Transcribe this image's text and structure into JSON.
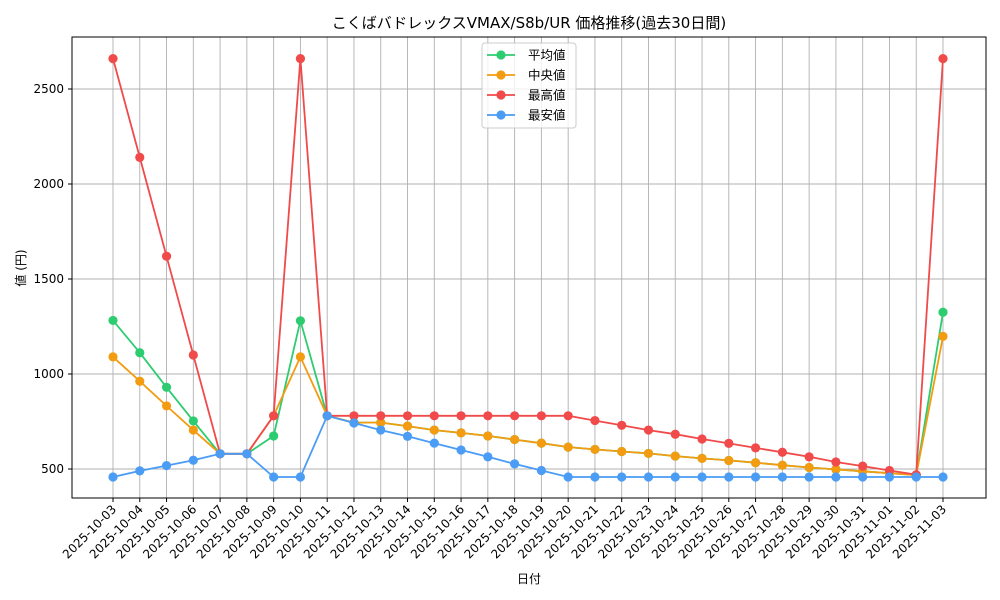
{
  "chart_data": {
    "type": "line",
    "title": "こくばバドレックスVMAX/S8b/UR 価格推移(過去30日間)",
    "xlabel": "日付",
    "ylabel": "値 (円)",
    "ylim": [
      350,
      2760
    ],
    "yticks": [
      500,
      1000,
      1500,
      2000,
      2500
    ],
    "grid": true,
    "legend_position": "upper center",
    "categories": [
      "2025-10-03",
      "2025-10-04",
      "2025-10-05",
      "2025-10-06",
      "2025-10-07",
      "2025-10-08",
      "2025-10-09",
      "2025-10-10",
      "2025-10-11",
      "2025-10-12",
      "2025-10-13",
      "2025-10-14",
      "2025-10-15",
      "2025-10-16",
      "2025-10-17",
      "2025-10-18",
      "2025-10-19",
      "2025-10-20",
      "2025-10-21",
      "2025-10-22",
      "2025-10-23",
      "2025-10-24",
      "2025-10-25",
      "2025-10-26",
      "2025-10-27",
      "2025-10-28",
      "2025-10-29",
      "2025-10-30",
      "2025-10-31",
      "2025-11-01",
      "2025-11-02",
      "2025-11-03"
    ],
    "series": [
      {
        "name": "平均値",
        "color": "#2ecc71",
        "values": [
          1282,
          1112,
          930,
          753,
          580,
          580,
          674,
          1280,
          780,
          744,
          744,
          726,
          705,
          690,
          674,
          655,
          636,
          615,
          603,
          592,
          582,
          568,
          556,
          545,
          533,
          520,
          508,
          498,
          488,
          478,
          468,
          1325
        ]
      },
      {
        "name": "中央値",
        "color": "#f39c12",
        "values": [
          1090,
          962,
          832,
          705,
          580,
          580,
          780,
          1090,
          780,
          744,
          744,
          726,
          705,
          690,
          674,
          655,
          636,
          615,
          603,
          592,
          582,
          568,
          556,
          545,
          533,
          520,
          508,
          498,
          488,
          478,
          468,
          1198
        ]
      },
      {
        "name": "最高値",
        "color": "#f04a4a",
        "values": [
          2660,
          2140,
          1620,
          1100,
          580,
          580,
          780,
          2660,
          780,
          780,
          780,
          780,
          780,
          780,
          780,
          780,
          780,
          780,
          755,
          730,
          705,
          683,
          658,
          635,
          611,
          588,
          564,
          537,
          515,
          492,
          470,
          2660
        ]
      },
      {
        "name": "最安値",
        "color": "#4a9cf5",
        "values": [
          458,
          490,
          518,
          546,
          580,
          580,
          458,
          458,
          780,
          742,
          705,
          672,
          636,
          600,
          564,
          527,
          492,
          458,
          458,
          458,
          458,
          458,
          458,
          458,
          458,
          458,
          458,
          458,
          458,
          458,
          458,
          458
        ]
      }
    ]
  }
}
